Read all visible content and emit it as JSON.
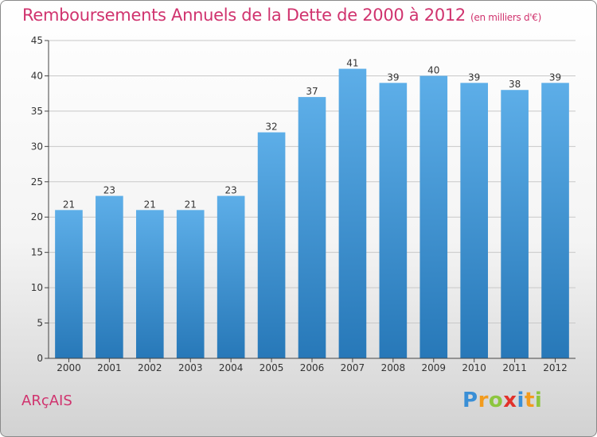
{
  "title": "Remboursements Annuels de la Dette de 2000 à 2012",
  "subtitle": "(en milliers d'€)",
  "commune": "ARçAIS",
  "logo": "Proxiti",
  "colors": {
    "title": "#d0336e",
    "bar_top": "#5daee8",
    "bar_bottom": "#2778b8"
  },
  "chart_data": {
    "type": "bar",
    "title": "Remboursements Annuels de la Dette de 2000 à 2012",
    "subtitle": "(en milliers d'€)",
    "xlabel": "",
    "ylabel": "",
    "categories": [
      "2000",
      "2001",
      "2002",
      "2003",
      "2004",
      "2005",
      "2006",
      "2007",
      "2008",
      "2009",
      "2010",
      "2011",
      "2012"
    ],
    "values": [
      21,
      23,
      21,
      21,
      23,
      32,
      37,
      41,
      39,
      40,
      39,
      38,
      39
    ],
    "ylim": [
      0,
      45
    ],
    "yticks": [
      0,
      5,
      10,
      15,
      20,
      25,
      30,
      35,
      40,
      45
    ],
    "grid": true,
    "data_labels": true
  }
}
